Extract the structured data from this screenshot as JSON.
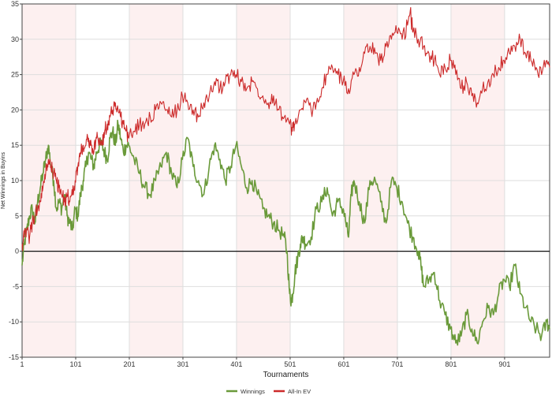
{
  "chart_data": {
    "type": "line",
    "xlabel": "Tournaments",
    "ylabel": "Net Winnings in Buyins",
    "xlim": [
      1,
      985
    ],
    "ylim": [
      -15,
      35
    ],
    "x_ticks": [
      "1",
      "101",
      "201",
      "301",
      "401",
      "501",
      "601",
      "701",
      "801",
      "901"
    ],
    "x_tick_values": [
      1,
      101,
      201,
      301,
      401,
      501,
      601,
      701,
      801,
      901
    ],
    "y_ticks": [
      "-15",
      "-10",
      "-5",
      "0",
      "5",
      "10",
      "15",
      "20",
      "25",
      "30",
      "35"
    ],
    "y_tick_values": [
      -15,
      -10,
      -5,
      0,
      5,
      10,
      15,
      20,
      25,
      30,
      35
    ],
    "grid": true,
    "legend_position": "bottom-center",
    "band_color": "#fdf0f0",
    "zero_line_color": "#111111",
    "series": [
      {
        "name": "Winnings",
        "color": "#6a9a3a",
        "x": [
          1,
          5,
          10,
          15,
          20,
          25,
          30,
          35,
          40,
          45,
          50,
          55,
          60,
          65,
          70,
          75,
          80,
          85,
          90,
          95,
          100,
          105,
          110,
          115,
          120,
          125,
          130,
          135,
          140,
          145,
          150,
          155,
          160,
          165,
          170,
          175,
          180,
          185,
          190,
          195,
          200,
          210,
          220,
          230,
          240,
          250,
          260,
          270,
          280,
          290,
          300,
          310,
          320,
          330,
          340,
          350,
          360,
          370,
          380,
          390,
          400,
          410,
          420,
          430,
          440,
          450,
          460,
          470,
          480,
          490,
          495,
          500,
          503,
          506,
          510,
          515,
          520,
          525,
          530,
          540,
          550,
          560,
          570,
          580,
          590,
          600,
          605,
          610,
          615,
          620,
          630,
          640,
          650,
          660,
          670,
          680,
          690,
          700,
          710,
          720,
          730,
          740,
          745,
          750,
          760,
          770,
          780,
          790,
          800,
          810,
          820,
          830,
          840,
          850,
          860,
          870,
          880,
          890,
          900,
          910,
          920,
          930,
          940,
          950,
          960,
          970,
          980,
          985
        ],
        "values": [
          -2,
          1,
          3,
          5,
          6,
          4,
          7,
          9,
          11,
          13,
          15,
          12,
          10,
          6,
          7,
          6,
          8,
          5,
          4,
          3,
          6,
          5,
          8,
          10,
          12,
          14,
          13,
          12,
          14,
          15,
          15,
          14,
          13,
          16,
          17,
          15,
          18,
          16,
          14,
          15,
          15,
          13,
          11,
          9,
          8,
          10,
          12,
          14,
          11,
          9,
          13,
          16,
          12,
          10,
          8,
          12,
          15,
          13,
          10,
          12,
          15,
          12,
          9,
          10,
          8,
          6,
          5,
          4,
          3,
          2,
          0,
          -6,
          -7,
          -6,
          -3,
          -1,
          1,
          2,
          1,
          2,
          6,
          7,
          9,
          5,
          7,
          6,
          4,
          2,
          8,
          10,
          7,
          4,
          10,
          10,
          7,
          4,
          10,
          9,
          7,
          4,
          2,
          0,
          -2,
          -5,
          -4,
          -3,
          -7,
          -9,
          -11,
          -13,
          -12,
          -9,
          -11,
          -13,
          -10,
          -8,
          -9,
          -6,
          -4,
          -5,
          -2,
          -6,
          -8,
          -10,
          -11,
          -12,
          -10,
          -11
        ]
      },
      {
        "name": "All-In EV",
        "color": "#cc2a2a",
        "x": [
          1,
          5,
          10,
          15,
          20,
          25,
          30,
          35,
          40,
          45,
          50,
          55,
          60,
          65,
          70,
          75,
          80,
          85,
          90,
          95,
          100,
          105,
          110,
          115,
          120,
          125,
          130,
          135,
          140,
          145,
          150,
          155,
          160,
          165,
          170,
          175,
          180,
          185,
          190,
          195,
          200,
          210,
          220,
          230,
          240,
          250,
          260,
          270,
          280,
          290,
          300,
          310,
          320,
          330,
          340,
          350,
          360,
          370,
          380,
          390,
          400,
          410,
          420,
          430,
          440,
          450,
          460,
          470,
          480,
          490,
          500,
          505,
          510,
          520,
          530,
          540,
          550,
          560,
          570,
          580,
          590,
          600,
          610,
          620,
          630,
          640,
          650,
          660,
          670,
          680,
          690,
          700,
          710,
          720,
          725,
          730,
          740,
          750,
          760,
          770,
          780,
          790,
          800,
          810,
          820,
          830,
          840,
          850,
          860,
          870,
          880,
          890,
          900,
          910,
          920,
          930,
          940,
          950,
          960,
          970,
          980,
          985
        ],
        "values": [
          1,
          2,
          3,
          2,
          4,
          5,
          6,
          7,
          9,
          11,
          13,
          12,
          11,
          10,
          9,
          8,
          7,
          8,
          7,
          8,
          10,
          12,
          14,
          15,
          15,
          16,
          15,
          14,
          16,
          16,
          15,
          17,
          18,
          19,
          20,
          21,
          20,
          19,
          18,
          17,
          16,
          17,
          18,
          18,
          19,
          20,
          21,
          20,
          19,
          20,
          22,
          21,
          20,
          19,
          21,
          22,
          24,
          23,
          24,
          25,
          25,
          24,
          23,
          24,
          23,
          22,
          21,
          22,
          20,
          19,
          18,
          17,
          18,
          20,
          21,
          20,
          21,
          23,
          25,
          26,
          25,
          24,
          23,
          25,
          26,
          28,
          29,
          28,
          27,
          29,
          30,
          31,
          30,
          32,
          34,
          31,
          30,
          29,
          28,
          27,
          25,
          26,
          27,
          25,
          23,
          24,
          22,
          21,
          23,
          24,
          25,
          26,
          27,
          28,
          29,
          30,
          28,
          27,
          26,
          25,
          27,
          26
        ]
      }
    ]
  }
}
